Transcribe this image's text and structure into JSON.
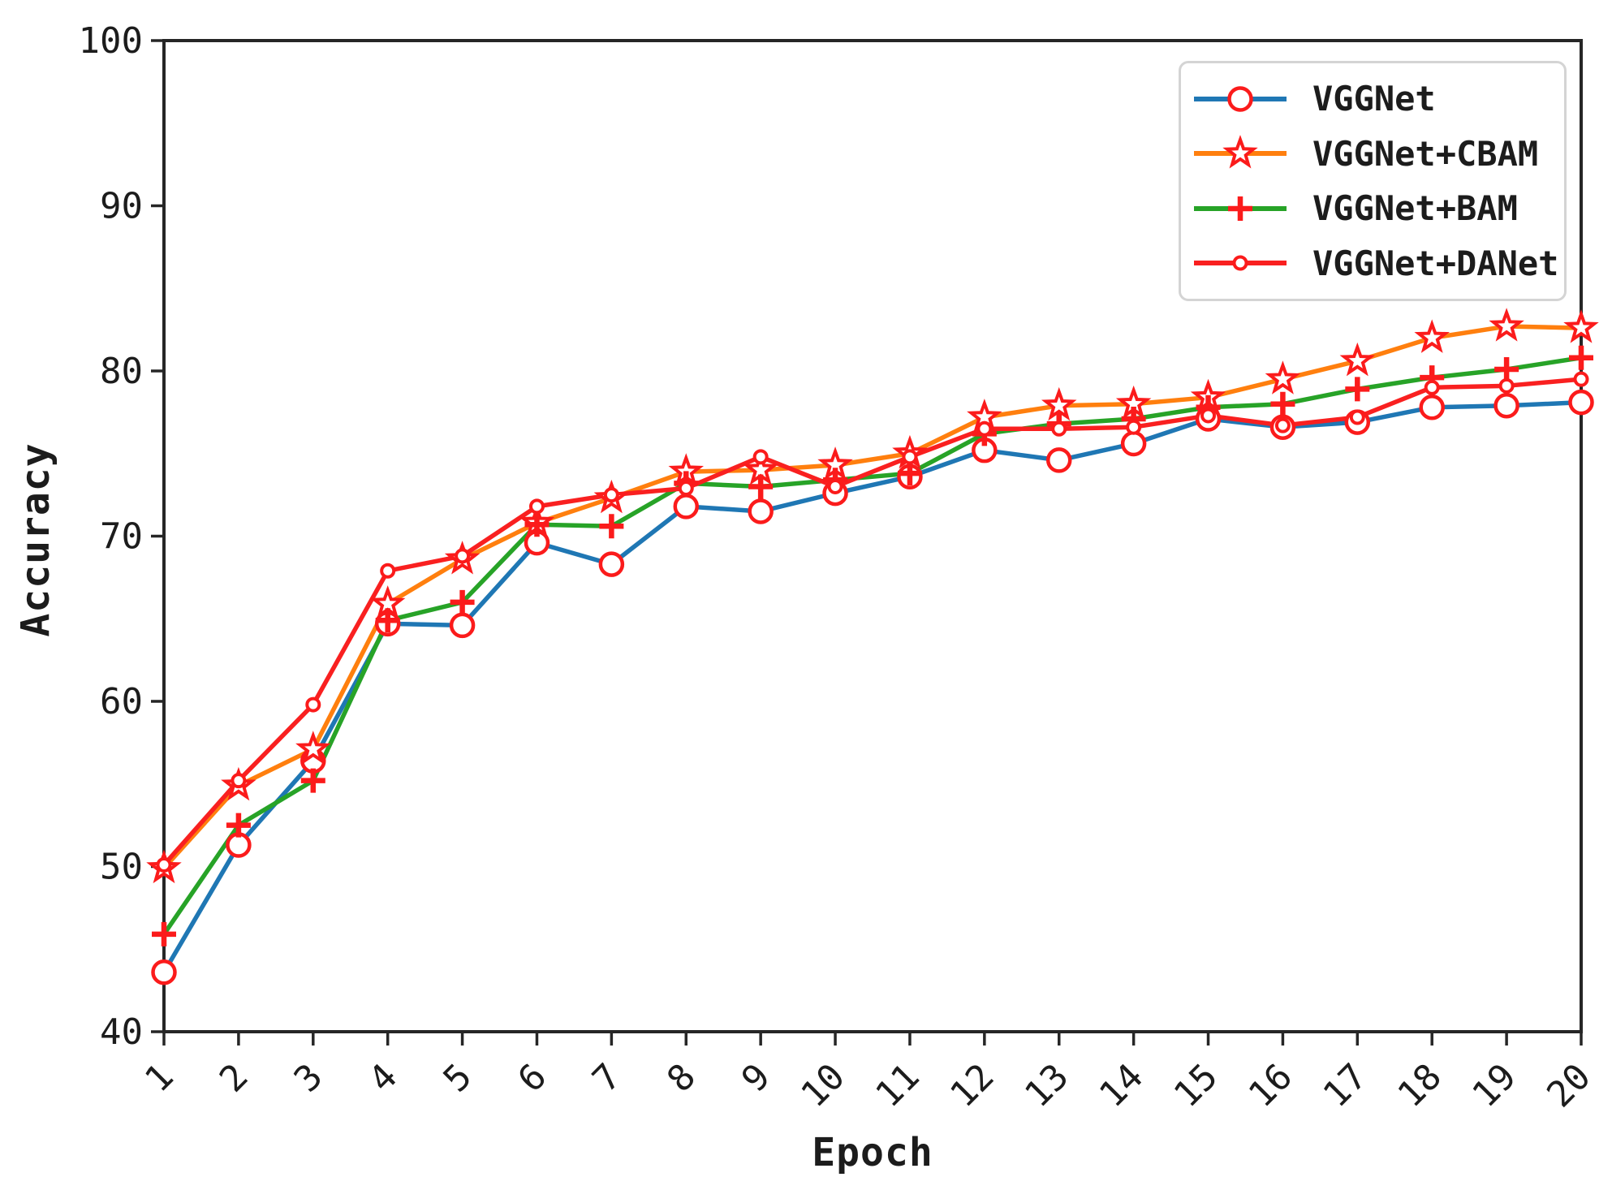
{
  "figure": {
    "background": "#ffffff",
    "axis_color": "#262626",
    "tick_label_color": "#1c1c1c",
    "legend_border_color": "#d4d4d4",
    "marker_color": "#fb1b1b"
  },
  "chart_data": {
    "type": "line",
    "title": "",
    "xlabel": "Epoch",
    "ylabel": "Accuracy",
    "xlim": [
      1,
      20
    ],
    "ylim": [
      40,
      100
    ],
    "xticks": [
      1,
      2,
      3,
      4,
      5,
      6,
      7,
      8,
      9,
      10,
      11,
      12,
      13,
      14,
      15,
      16,
      17,
      18,
      19,
      20
    ],
    "yticks": [
      40,
      50,
      60,
      70,
      80,
      90,
      100
    ],
    "grid": false,
    "legend_position": "upper right",
    "x": [
      1,
      2,
      3,
      4,
      5,
      6,
      7,
      8,
      9,
      10,
      11,
      12,
      13,
      14,
      15,
      16,
      17,
      18,
      19,
      20
    ],
    "series": [
      {
        "name": "VGGNet",
        "line_color": "#1f77b4",
        "marker": "circle-large",
        "marker_color": "#fb1b1b",
        "values": [
          43.6,
          51.3,
          56.4,
          64.7,
          64.6,
          69.6,
          68.3,
          71.8,
          71.5,
          72.6,
          73.6,
          75.2,
          74.6,
          75.6,
          77.1,
          76.6,
          76.9,
          77.8,
          77.9,
          78.1
        ]
      },
      {
        "name": "VGGNet+CBAM",
        "line_color": "#ff7f0e",
        "marker": "star",
        "marker_color": "#fb1b1b",
        "values": [
          49.9,
          54.9,
          57.1,
          65.9,
          68.6,
          70.8,
          72.3,
          73.9,
          74.0,
          74.3,
          75.0,
          77.2,
          77.9,
          78.0,
          78.4,
          79.5,
          80.6,
          82.0,
          82.7,
          82.6
        ]
      },
      {
        "name": "VGGNet+BAM",
        "line_color": "#27a327",
        "marker": "plus",
        "marker_color": "#fb1b1b",
        "values": [
          45.9,
          52.5,
          55.2,
          64.9,
          66.0,
          70.7,
          70.6,
          73.2,
          73.0,
          73.4,
          73.8,
          76.2,
          76.8,
          77.1,
          77.8,
          78.0,
          78.9,
          79.6,
          80.1,
          80.8
        ]
      },
      {
        "name": "VGGNet+DANet",
        "line_color": "#f92020",
        "marker": "circle-small",
        "marker_color": "#fb1b1b",
        "values": [
          50.1,
          55.2,
          59.8,
          67.9,
          68.8,
          71.8,
          72.5,
          72.9,
          74.8,
          73.0,
          74.8,
          76.5,
          76.5,
          76.6,
          77.3,
          76.7,
          77.2,
          79.0,
          79.1,
          79.5
        ]
      }
    ]
  }
}
